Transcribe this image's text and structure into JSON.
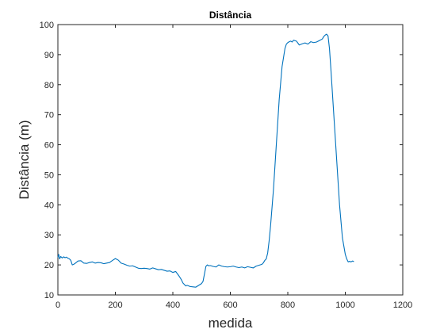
{
  "chart_data": {
    "type": "line",
    "title": "Distância",
    "xlabel": "medida",
    "ylabel": "Distância (m)",
    "xlim": [
      0,
      1200
    ],
    "ylim": [
      10,
      100
    ],
    "xticks": [
      0,
      200,
      400,
      600,
      800,
      1000,
      1200
    ],
    "yticks": [
      10,
      20,
      30,
      40,
      50,
      60,
      70,
      80,
      90,
      100
    ],
    "grid": false,
    "box": true,
    "colors": {
      "line": "#0072BD",
      "axis": "#262626"
    },
    "series": [
      {
        "x": [
          0,
          3,
          6,
          10,
          15,
          20,
          25,
          30,
          35,
          40,
          45,
          50,
          55,
          60,
          70,
          80,
          90,
          100,
          110,
          120,
          130,
          140,
          150,
          160,
          170,
          180,
          190,
          200,
          210,
          220,
          230,
          240,
          250,
          260,
          270,
          280,
          290,
          300,
          310,
          320,
          330,
          340,
          350,
          360,
          370,
          380,
          390,
          400,
          410,
          420,
          425,
          430,
          435,
          440,
          445,
          450,
          460,
          470,
          480,
          490,
          500,
          505,
          510,
          515,
          520,
          525,
          530,
          540,
          550,
          560,
          570,
          580,
          590,
          600,
          610,
          620,
          630,
          640,
          650,
          660,
          670,
          680,
          690,
          700,
          710,
          715,
          720,
          725,
          730,
          735,
          740,
          750,
          760,
          770,
          780,
          790,
          795,
          800,
          805,
          810,
          815,
          820,
          830,
          840,
          850,
          860,
          870,
          880,
          890,
          900,
          910,
          920,
          925,
          930,
          935,
          940,
          945,
          950,
          960,
          970,
          980,
          990,
          1000,
          1005,
          1010,
          1015,
          1020,
          1025,
          1030
        ],
        "y": [
          22.5,
          23.5,
          22.0,
          22.8,
          22.3,
          22.7,
          22.4,
          22.6,
          22.2,
          22.0,
          21.5,
          20.0,
          20.2,
          20.5,
          21.3,
          21.4,
          20.6,
          20.5,
          20.8,
          21.0,
          20.6,
          20.8,
          20.7,
          20.4,
          20.6,
          20.8,
          21.5,
          22.1,
          21.6,
          20.6,
          20.3,
          19.9,
          19.6,
          19.7,
          19.3,
          18.9,
          18.8,
          18.9,
          18.8,
          18.6,
          19.0,
          18.7,
          18.4,
          18.5,
          18.2,
          17.9,
          18.0,
          17.5,
          17.8,
          16.5,
          15.8,
          15.0,
          14.0,
          13.5,
          13.0,
          13.2,
          12.8,
          12.7,
          12.6,
          13.2,
          13.8,
          14.5,
          17.0,
          19.5,
          20.0,
          19.7,
          19.8,
          19.5,
          19.3,
          20.0,
          19.6,
          19.4,
          19.3,
          19.4,
          19.6,
          19.3,
          19.1,
          19.3,
          19.0,
          19.4,
          19.2,
          19.0,
          19.6,
          19.9,
          20.2,
          20.7,
          21.5,
          22.0,
          24.0,
          28.0,
          33.0,
          45.0,
          60.0,
          75.0,
          86.0,
          92.0,
          93.5,
          94.0,
          94.3,
          94.5,
          94.2,
          94.8,
          94.5,
          93.2,
          93.6,
          93.9,
          93.5,
          94.3,
          94.0,
          94.2,
          94.7,
          95.2,
          96.0,
          96.5,
          96.8,
          96.2,
          92.0,
          85.0,
          70.0,
          55.0,
          40.0,
          29.0,
          23.5,
          22.0,
          21.0,
          21.2,
          21.0,
          21.3,
          21.1
        ]
      }
    ]
  }
}
